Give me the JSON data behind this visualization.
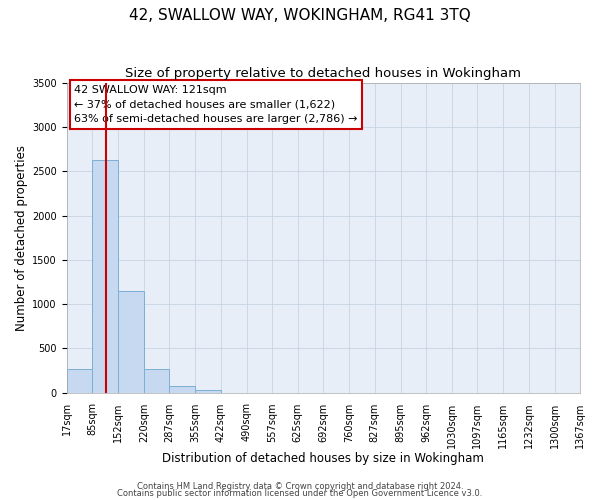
{
  "title": "42, SWALLOW WAY, WOKINGHAM, RG41 3TQ",
  "subtitle": "Size of property relative to detached houses in Wokingham",
  "xlabel": "Distribution of detached houses by size in Wokingham",
  "ylabel": "Number of detached properties",
  "bin_edges": [
    17,
    85,
    152,
    220,
    287,
    355,
    422,
    490,
    557,
    625,
    692,
    760,
    827,
    895,
    962,
    1030,
    1097,
    1165,
    1232,
    1300,
    1367
  ],
  "bin_labels": [
    "17sqm",
    "85sqm",
    "152sqm",
    "220sqm",
    "287sqm",
    "355sqm",
    "422sqm",
    "490sqm",
    "557sqm",
    "625sqm",
    "692sqm",
    "760sqm",
    "827sqm",
    "895sqm",
    "962sqm",
    "1030sqm",
    "1097sqm",
    "1165sqm",
    "1232sqm",
    "1300sqm",
    "1367sqm"
  ],
  "bar_heights": [
    270,
    2630,
    1150,
    270,
    75,
    30,
    0,
    0,
    0,
    0,
    0,
    0,
    0,
    0,
    0,
    0,
    0,
    0,
    0,
    0
  ],
  "bar_color": "#c6d9f0",
  "bar_edge_color": "#7bafd4",
  "vline_x": 121,
  "vline_color": "#cc0000",
  "ylim": [
    0,
    3500
  ],
  "annotation_line1": "42 SWALLOW WAY: 121sqm",
  "annotation_line2": "← 37% of detached houses are smaller (1,622)",
  "annotation_line3": "63% of semi-detached houses are larger (2,786) →",
  "footer_line1": "Contains HM Land Registry data © Crown copyright and database right 2024.",
  "footer_line2": "Contains public sector information licensed under the Open Government Licence v3.0.",
  "background_color": "#ffffff",
  "plot_bg_color": "#e8eef8",
  "grid_color": "#c8d4e4",
  "title_fontsize": 11,
  "subtitle_fontsize": 9.5,
  "axis_label_fontsize": 8.5,
  "tick_fontsize": 7,
  "annot_fontsize": 8,
  "footer_fontsize": 6
}
